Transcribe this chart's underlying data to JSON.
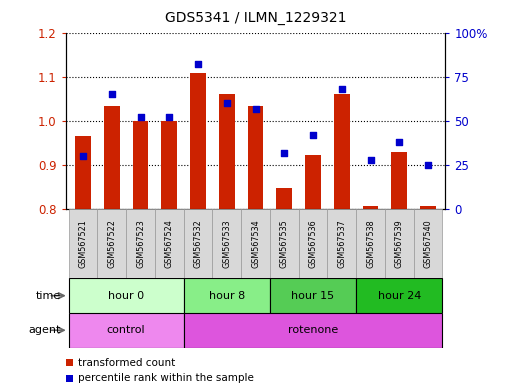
{
  "title": "GDS5341 / ILMN_1229321",
  "samples": [
    "GSM567521",
    "GSM567522",
    "GSM567523",
    "GSM567524",
    "GSM567532",
    "GSM567533",
    "GSM567534",
    "GSM567535",
    "GSM567536",
    "GSM567537",
    "GSM567538",
    "GSM567539",
    "GSM567540"
  ],
  "bar_values": [
    0.965,
    1.035,
    1.0,
    1.0,
    1.108,
    1.06,
    1.033,
    0.848,
    0.923,
    1.06,
    0.808,
    0.93,
    0.808
  ],
  "dot_values": [
    30,
    65,
    52,
    52,
    82,
    60,
    57,
    32,
    42,
    68,
    28,
    38,
    25
  ],
  "bar_bottom": 0.8,
  "ylim_left": [
    0.8,
    1.2
  ],
  "ylim_right": [
    0,
    100
  ],
  "yticks_left": [
    0.8,
    0.9,
    1.0,
    1.1,
    1.2
  ],
  "yticks_right": [
    0,
    25,
    50,
    75,
    100
  ],
  "ytick_labels_right": [
    "0",
    "25",
    "50",
    "75",
    "100%"
  ],
  "bar_color": "#cc2200",
  "dot_color": "#0000cc",
  "groups": [
    {
      "label": "hour 0",
      "start": 0,
      "end": 4,
      "color": "#ccffcc"
    },
    {
      "label": "hour 8",
      "start": 4,
      "end": 7,
      "color": "#88ee88"
    },
    {
      "label": "hour 15",
      "start": 7,
      "end": 10,
      "color": "#55cc55"
    },
    {
      "label": "hour 24",
      "start": 10,
      "end": 13,
      "color": "#22bb22"
    }
  ],
  "agents": [
    {
      "label": "control",
      "start": 0,
      "end": 4,
      "color": "#ee88ee"
    },
    {
      "label": "rotenone",
      "start": 4,
      "end": 13,
      "color": "#dd55dd"
    }
  ],
  "time_label": "time",
  "agent_label": "agent",
  "legend_bar": "transformed count",
  "legend_dot": "percentile rank within the sample",
  "grid_color": "#000000",
  "tick_color_left": "#cc2200",
  "tick_color_right": "#0000cc",
  "label_bg": "#d8d8d8",
  "label_edge": "#999999"
}
